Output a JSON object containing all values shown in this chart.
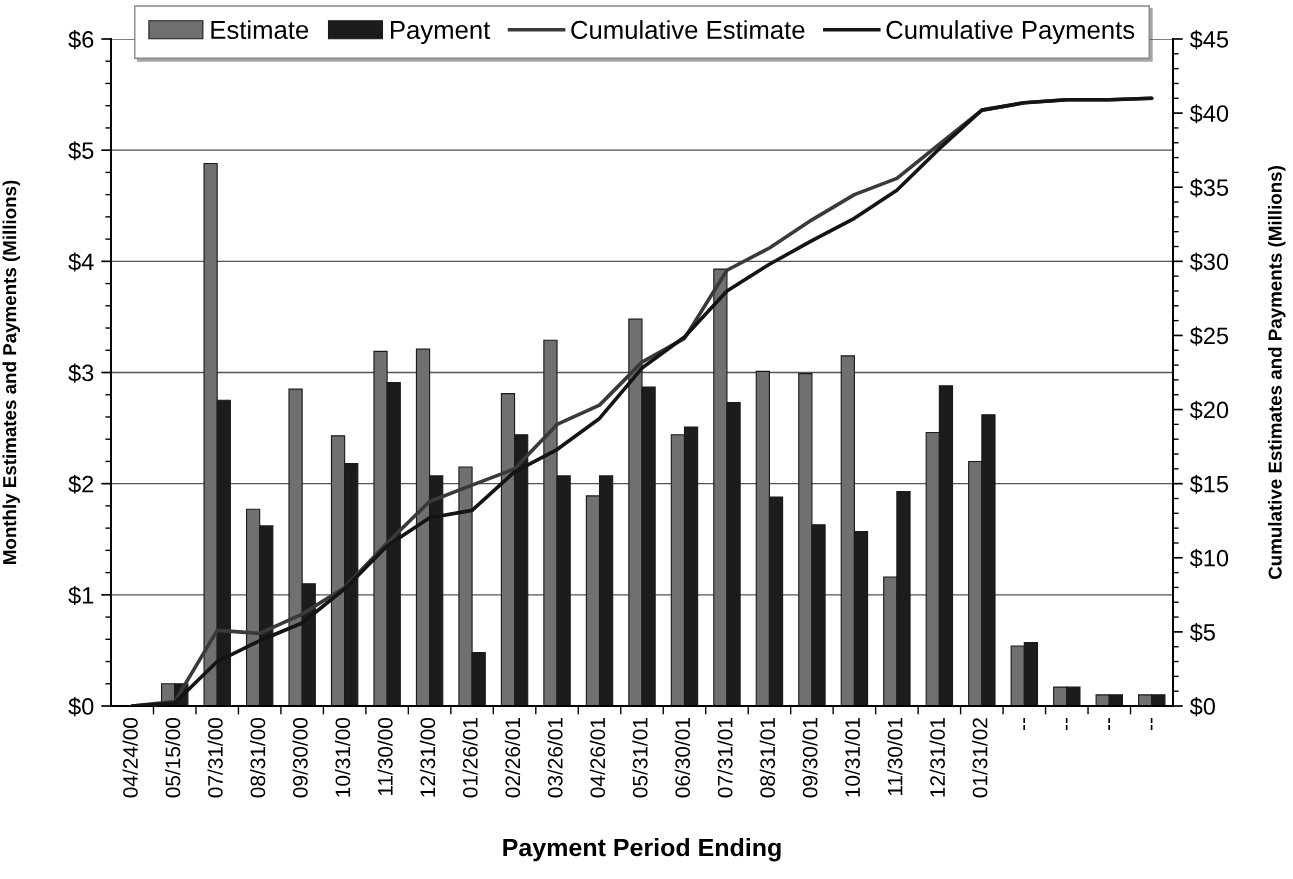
{
  "chart_data": {
    "type": "bar",
    "xlabel": "Payment Period Ending",
    "ylabel": "Monthly Estimates and Payments (Millions)",
    "y2label": "Cumulative Estimates and Payments (Millions)",
    "categories": [
      "04/24/00",
      "05/15/00",
      "07/31/00",
      "08/31/00",
      "09/30/00",
      "10/31/00",
      "11/30/00",
      "12/31/00",
      "01/26/01",
      "02/26/01",
      "03/26/01",
      "04/26/01",
      "05/31/01",
      "06/30/01",
      "07/31/01",
      "08/31/01",
      "09/30/01",
      "10/31/01",
      "11/30/01",
      "12/31/01",
      "01/31/02",
      "--",
      "--",
      "--",
      "--"
    ],
    "series": [
      {
        "name": "Estimate",
        "color": "#707070",
        "values": [
          0,
          0.2,
          4.88,
          1.77,
          2.85,
          2.43,
          3.19,
          3.21,
          2.15,
          2.81,
          3.29,
          1.89,
          3.48,
          2.44,
          3.93,
          3.01,
          2.99,
          3.15,
          1.16,
          2.46,
          2.2,
          0.54,
          0.17,
          0.1,
          0.1
        ]
      },
      {
        "name": "Payment",
        "color": "#1c1c1c",
        "values": [
          0,
          0.2,
          2.75,
          1.62,
          1.1,
          2.18,
          2.91,
          2.07,
          0.48,
          2.44,
          2.07,
          2.07,
          2.87,
          2.51,
          2.73,
          1.88,
          1.63,
          1.57,
          1.93,
          2.88,
          2.62,
          0.57,
          0.17,
          0.1,
          0.1
        ]
      },
      {
        "name": "Cumulative Estimate",
        "type": "line",
        "axis": "y2",
        "color": "#3a3a3a",
        "values": [
          0,
          0.3,
          5.1,
          4.9,
          6.2,
          8.0,
          11.0,
          13.8,
          14.9,
          16.0,
          19.0,
          20.3,
          23.2,
          24.8,
          29.4,
          30.9,
          32.8,
          34.5,
          35.6,
          37.9,
          40.2,
          40.7,
          40.9,
          40.9,
          41.0
        ]
      },
      {
        "name": "Cumulative Payments",
        "type": "line",
        "axis": "y2",
        "color": "#141414",
        "values": [
          0,
          0.2,
          3.0,
          4.4,
          5.6,
          7.9,
          10.8,
          12.7,
          13.2,
          15.8,
          17.3,
          19.4,
          22.8,
          24.9,
          28.0,
          29.8,
          31.4,
          32.9,
          34.8,
          37.6,
          40.2,
          40.7,
          40.9,
          40.9,
          41.0
        ]
      }
    ],
    "ylim": [
      0,
      6
    ],
    "yticks": [
      {
        "value": 0,
        "label": "$0"
      },
      {
        "value": 0.2,
        "label": null
      },
      {
        "value": 0.4,
        "label": null
      },
      {
        "value": 0.6,
        "label": null
      },
      {
        "value": 0.8,
        "label": null
      },
      {
        "value": 1,
        "label": "$1"
      },
      {
        "value": 1.2,
        "label": null
      },
      {
        "value": 1.4,
        "label": null
      },
      {
        "value": 1.6,
        "label": null
      },
      {
        "value": 1.8,
        "label": null
      },
      {
        "value": 2,
        "label": "$2"
      },
      {
        "value": 2.2,
        "label": null
      },
      {
        "value": 2.4,
        "label": null
      },
      {
        "value": 2.6,
        "label": null
      },
      {
        "value": 2.8,
        "label": null
      },
      {
        "value": 3,
        "label": "$3"
      },
      {
        "value": 3.2,
        "label": null
      },
      {
        "value": 3.4,
        "label": null
      },
      {
        "value": 3.6,
        "label": null
      },
      {
        "value": 3.8,
        "label": null
      },
      {
        "value": 4,
        "label": "$4"
      },
      {
        "value": 4.2,
        "label": null
      },
      {
        "value": 4.4,
        "label": null
      },
      {
        "value": 4.6,
        "label": null
      },
      {
        "value": 4.8,
        "label": null
      },
      {
        "value": 5,
        "label": "$5"
      },
      {
        "value": 5.2,
        "label": null
      },
      {
        "value": 5.4,
        "label": null
      },
      {
        "value": 5.6,
        "label": null
      },
      {
        "value": 5.8,
        "label": null
      },
      {
        "value": 6,
        "label": "$6"
      }
    ],
    "y2lim": [
      0,
      45
    ],
    "y2ticks": [
      {
        "value": 0,
        "label": "$0"
      },
      {
        "value": 1,
        "label": null
      },
      {
        "value": 2,
        "label": null
      },
      {
        "value": 3,
        "label": null
      },
      {
        "value": 4,
        "label": null
      },
      {
        "value": 5,
        "label": "$5"
      },
      {
        "value": 6,
        "label": null
      },
      {
        "value": 7,
        "label": null
      },
      {
        "value": 8,
        "label": null
      },
      {
        "value": 9,
        "label": null
      },
      {
        "value": 10,
        "label": "$10"
      },
      {
        "value": 11,
        "label": null
      },
      {
        "value": 12,
        "label": null
      },
      {
        "value": 13,
        "label": null
      },
      {
        "value": 14,
        "label": null
      },
      {
        "value": 15,
        "label": "$15"
      },
      {
        "value": 16,
        "label": null
      },
      {
        "value": 17,
        "label": null
      },
      {
        "value": 18,
        "label": null
      },
      {
        "value": 19,
        "label": null
      },
      {
        "value": 20,
        "label": "$20"
      },
      {
        "value": 21,
        "label": null
      },
      {
        "value": 22,
        "label": null
      },
      {
        "value": 23,
        "label": null
      },
      {
        "value": 24,
        "label": null
      },
      {
        "value": 25,
        "label": "$25"
      },
      {
        "value": 26,
        "label": null
      },
      {
        "value": 27,
        "label": null
      },
      {
        "value": 28,
        "label": null
      },
      {
        "value": 29,
        "label": null
      },
      {
        "value": 30,
        "label": "$30"
      },
      {
        "value": 31,
        "label": null
      },
      {
        "value": 32,
        "label": null
      },
      {
        "value": 33,
        "label": null
      },
      {
        "value": 34,
        "label": null
      },
      {
        "value": 35,
        "label": "$35"
      },
      {
        "value": 36,
        "label": null
      },
      {
        "value": 37,
        "label": null
      },
      {
        "value": 38,
        "label": null
      },
      {
        "value": 39,
        "label": null
      },
      {
        "value": 40,
        "label": "$40"
      },
      {
        "value": 41,
        "label": null
      },
      {
        "value": 42,
        "label": null
      },
      {
        "value": 43,
        "label": null
      },
      {
        "value": 44,
        "label": null
      },
      {
        "value": 45,
        "label": "$45"
      }
    ],
    "grid": "y",
    "legend": "top",
    "line_style": "solid"
  }
}
